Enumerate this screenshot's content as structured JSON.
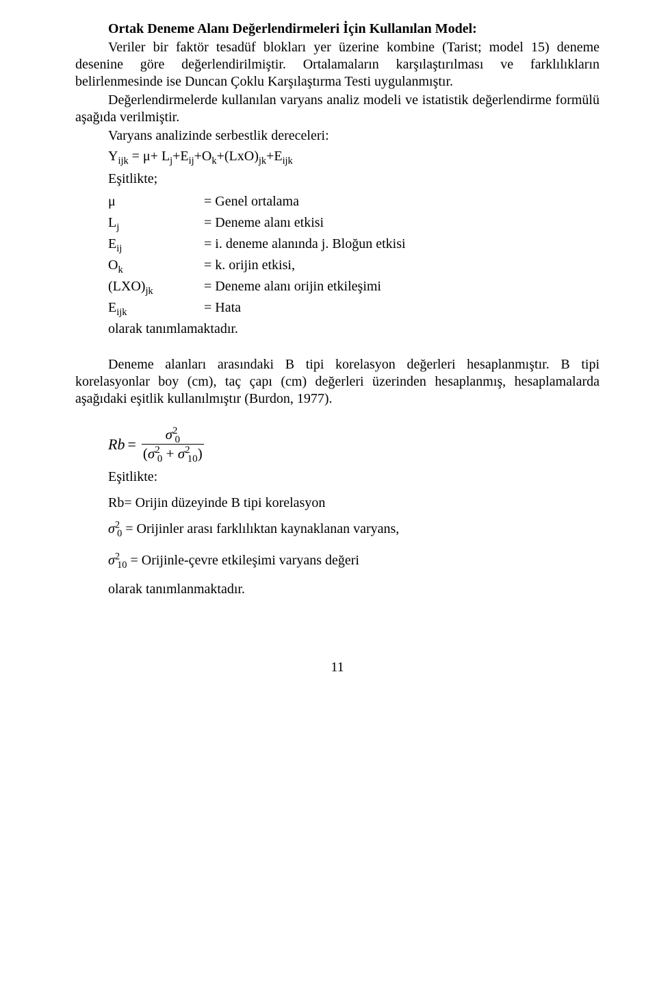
{
  "heading": "Ortak Deneme Alanı Değerlendirmeleri İçin Kullanılan Model:",
  "p1": "Veriler bir faktör tesadüf blokları yer üzerine kombine (Tarist; model 15) deneme desenine göre değerlendirilmiştir. Ortalamaların karşılaştırılması ve farklılıkların belirlenmesinde ise Duncan Çoklu Karşılaştırma Testi uygulanmıştır.",
  "p2": "Değerlendirmelerde kullanılan varyans analiz modeli ve istatistik değerlendirme formülü aşağıda verilmiştir.",
  "p3": "Varyans analizinde serbestlik dereceleri:",
  "eq1_prefix": "Y",
  "eq1_sub": "ijk",
  "eq1_rest1": " = μ+ L",
  "eq1_rest1_sub": "j",
  "eq1_rest2": "+E",
  "eq1_rest2_sub": "ij",
  "eq1_rest3": "+O",
  "eq1_rest3_sub": "k",
  "eq1_rest4": "+(LxO)",
  "eq1_rest4_sub": "jk",
  "eq1_rest5": "+E",
  "eq1_rest5_sub": "ijk",
  "esitlikte": "Eşitlikte;",
  "defs": [
    {
      "sym": "μ",
      "sym_sub": "",
      "val": "= Genel ortalama"
    },
    {
      "sym": "L",
      "sym_sub": "j",
      "val": "= Deneme alanı etkisi"
    },
    {
      "sym": "E",
      "sym_sub": "ij",
      "val": "= i. deneme alanında j. Bloğun etkisi"
    },
    {
      "sym": "O",
      "sym_sub": "k",
      "val": "= k. orijin etkisi,"
    },
    {
      "sym": "(LXO)",
      "sym_sub": "jk",
      "val": "= Deneme alanı orijin etkileşimi"
    },
    {
      "sym": "E",
      "sym_sub": "ijk",
      "val": "= Hata"
    }
  ],
  "def_tail": "olarak tanımlamaktadır.",
  "p4": "Deneme alanları arasındaki B tipi korelasyon değerleri hesaplanmıştır. B tipi korelasyonlar boy (cm), taç çapı (cm) değerleri üzerinden hesaplanmış, hesaplamalarda aşağıdaki eşitlik kullanılmıştır (Burdon, 1977).",
  "rb_label": "Rb",
  "equals": " = ",
  "sigma": "σ",
  "num_sub": "0",
  "den_sub1": "0",
  "den_sub2": "10",
  "plus": " + ",
  "lp": "(",
  "rp": ")",
  "esitlikte2": "Eşitlikte:",
  "rb_def": "Rb= Orijin düzeyinde B tipi korelasyon",
  "s0_def": " = Orijinler arası farklılıktan kaynaklanan varyans,",
  "s10_def": " = Orijinle-çevre etkileşimi varyans değeri",
  "tail2": "olarak tanımlanmaktadır.",
  "page": "11"
}
